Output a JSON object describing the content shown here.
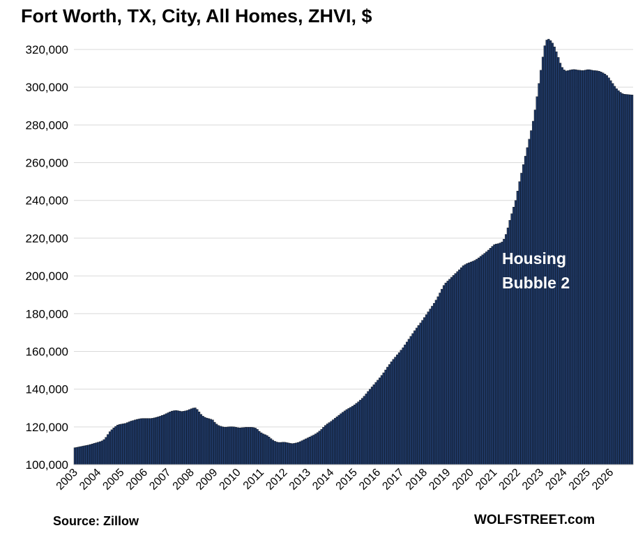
{
  "chart_data": {
    "type": "bar",
    "title": "Fort Worth, TX, City, All Homes, ZHVI, $",
    "source": "Source: Zillow",
    "brand": "WOLFSTREET.com",
    "ylim": [
      100000,
      325000
    ],
    "yticks": [
      "100,000",
      "120,000",
      "140,000",
      "160,000",
      "180,000",
      "200,000",
      "220,000",
      "240,000",
      "260,000",
      "280,000",
      "300,000",
      "320,000"
    ],
    "x_ticks": [
      "2003",
      "2004",
      "2005",
      "2006",
      "2007",
      "2008",
      "2009",
      "2010",
      "2011",
      "2012",
      "2013",
      "2014",
      "2015",
      "2016",
      "2017",
      "2018",
      "2019",
      "2020",
      "2021",
      "2022",
      "2023",
      "2024",
      "2025",
      "2026"
    ],
    "grid": true,
    "bar_color": "#1f3864",
    "annotation_lines": [
      "Housing",
      "Bubble 2"
    ],
    "frequency": "monthly",
    "start": "2003-01",
    "values": [
      109000,
      109200,
      109400,
      109600,
      109800,
      110000,
      110200,
      110400,
      110700,
      111000,
      111300,
      111600,
      111900,
      112200,
      112600,
      113300,
      114500,
      116000,
      117500,
      118500,
      119500,
      120300,
      121000,
      121300,
      121500,
      121700,
      121900,
      122300,
      122700,
      123100,
      123400,
      123700,
      124000,
      124200,
      124400,
      124500,
      124500,
      124500,
      124500,
      124500,
      124600,
      124800,
      125100,
      125400,
      125700,
      126100,
      126500,
      127000,
      127500,
      128000,
      128400,
      128600,
      128700,
      128600,
      128400,
      128200,
      128300,
      128500,
      128800,
      129200,
      129600,
      130000,
      130100,
      129300,
      128000,
      126700,
      125700,
      125100,
      124700,
      124400,
      124100,
      123700,
      122500,
      121500,
      120800,
      120400,
      120100,
      119900,
      119900,
      120000,
      120100,
      120100,
      120000,
      119800,
      119600,
      119500,
      119600,
      119700,
      119800,
      119800,
      119800,
      119800,
      119700,
      119400,
      118700,
      117700,
      116900,
      116300,
      115900,
      115400,
      114700,
      113800,
      113000,
      112400,
      112000,
      111800,
      111800,
      111900,
      111900,
      111700,
      111500,
      111300,
      111200,
      111300,
      111500,
      111800,
      112200,
      112700,
      113200,
      113700,
      114200,
      114700,
      115200,
      115700,
      116300,
      117000,
      117800,
      118700,
      119800,
      120800,
      121600,
      122300,
      123000,
      123800,
      124600,
      125400,
      126200,
      127000,
      127800,
      128500,
      129200,
      129800,
      130400,
      131000,
      131700,
      132500,
      133300,
      134200,
      135200,
      136300,
      137500,
      138800,
      140000,
      141200,
      142400,
      143600,
      144800,
      146000,
      147300,
      148700,
      150200,
      151700,
      153100,
      154500,
      155800,
      157000,
      158200,
      159400,
      160700,
      162000,
      163500,
      165000,
      166500,
      168000,
      169500,
      171000,
      172400,
      173800,
      175100,
      176500,
      178000,
      179500,
      181000,
      182500,
      184000,
      185500,
      187200,
      189000,
      191000,
      193000,
      195000,
      196300,
      197300,
      198300,
      199300,
      200300,
      201300,
      202300,
      203300,
      204400,
      205400,
      206000,
      206600,
      207000,
      207400,
      207800,
      208300,
      208900,
      209600,
      210400,
      211200,
      212000,
      212800,
      213700,
      214700,
      215700,
      216600,
      216900,
      217100,
      217500,
      218000,
      219500,
      222000,
      225500,
      229500,
      233000,
      236500,
      240000,
      245000,
      250000,
      254500,
      259000,
      263500,
      268000,
      272500,
      277000,
      282000,
      288000,
      295000,
      302000,
      309000,
      316000,
      322000,
      325000,
      325500,
      324700,
      323400,
      321400,
      318800,
      315800,
      312800,
      310500,
      309200,
      308600,
      308800,
      309100,
      309300,
      309400,
      309300,
      309100,
      309000,
      308900,
      308900,
      309100,
      309300,
      309300,
      309100,
      308900,
      308800,
      308700,
      308500,
      308100,
      307600,
      307000,
      306200,
      305000,
      303500,
      302000,
      300500,
      299200,
      298200,
      297300,
      296600,
      296300,
      296200,
      296100,
      296000,
      295900
    ]
  }
}
